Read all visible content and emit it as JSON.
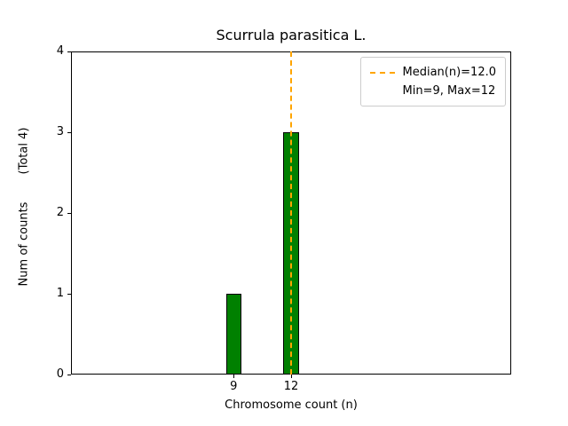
{
  "title": "Scurrula parasitica L.",
  "xlabel": "Chromosome count (n)",
  "ylabel": "Num of counts",
  "ylabel_note": "(Total 4)",
  "legend": {
    "median_label": "Median(n)=12.0",
    "minmax_label": "Min=9, Max=12"
  },
  "colors": {
    "bar": "#008000",
    "bar_edge": "#000000",
    "median_line": "#ffa500",
    "axis": "#000000",
    "legend_border": "#cccccc"
  },
  "chart_data": {
    "type": "bar",
    "title": "Scurrula parasitica L.",
    "xlabel": "Chromosome count (n)",
    "ylabel": "Num of counts (Total 4)",
    "categories": [
      9,
      12
    ],
    "values": [
      1,
      3
    ],
    "bar_width": 0.8,
    "xlim": [
      0.5,
      23.5
    ],
    "ylim": [
      0,
      4
    ],
    "xticks": [
      9,
      12
    ],
    "yticks": [
      0,
      1,
      2,
      3,
      4
    ],
    "median": 12.0,
    "min": 9,
    "max": 12,
    "total_counts": 4,
    "grid": false,
    "legend_position": "upper right"
  }
}
